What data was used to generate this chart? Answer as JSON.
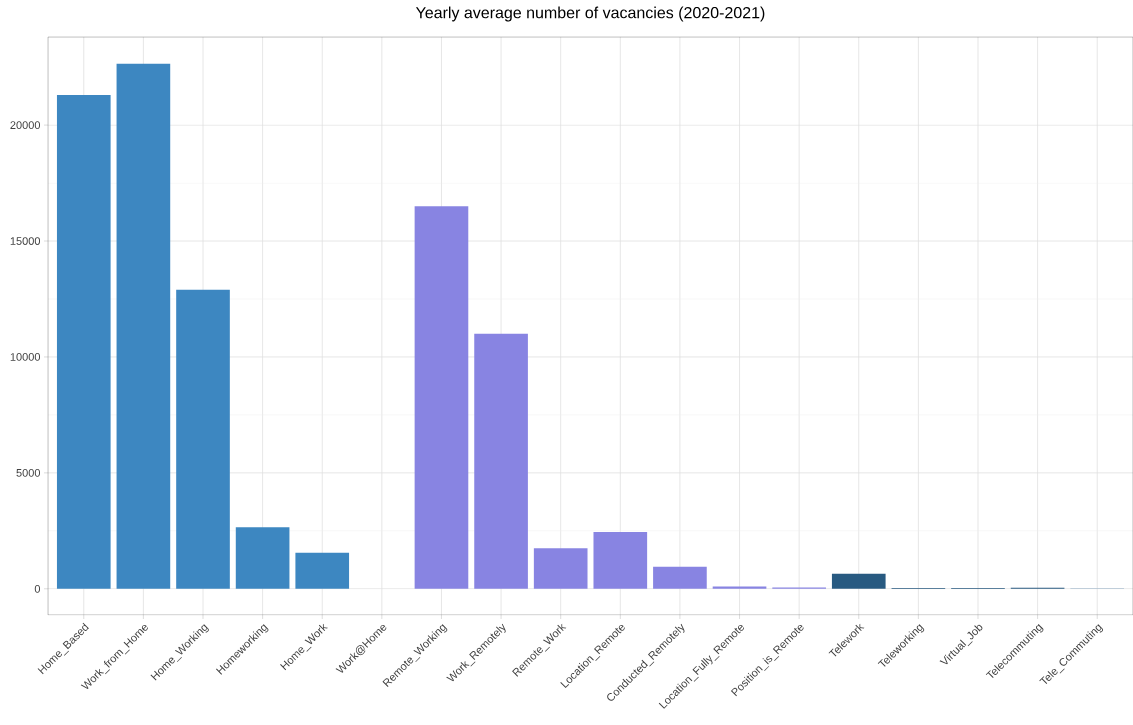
{
  "chart_data": {
    "type": "bar",
    "title": "Yearly average number of vacancies (2020-2021)",
    "categories": [
      "Home_Based",
      "Work_from_Home",
      "Home_Working",
      "Homeworking",
      "Home_Work",
      "Work@Home",
      "Remote_Working",
      "Work_Remotely",
      "Remote_Work",
      "Location_Remote",
      "Conducted_Remotely",
      "Location_Fully_Remote",
      "Position_is_Remote",
      "Telework",
      "Teleworking",
      "Virtual_Job",
      "Telecommuting",
      "Tele_Commuting"
    ],
    "values": [
      21300,
      22650,
      12900,
      2650,
      1550,
      0,
      16500,
      11000,
      1750,
      2450,
      950,
      100,
      60,
      650,
      30,
      30,
      50,
      20
    ],
    "colors": [
      "#3d87c1",
      "#3d87c1",
      "#3d87c1",
      "#3d87c1",
      "#3d87c1",
      "#3d87c1",
      "#8884e2",
      "#8884e2",
      "#8884e2",
      "#8884e2",
      "#8884e2",
      "#8884e2",
      "#8884e2",
      "#285a81",
      "#285a81",
      "#285a81",
      "#285a81",
      "#93afc7"
    ],
    "ylim": [
      -1130,
      23800
    ],
    "yticks": [
      0,
      5000,
      10000,
      15000,
      20000
    ],
    "grid": true
  }
}
